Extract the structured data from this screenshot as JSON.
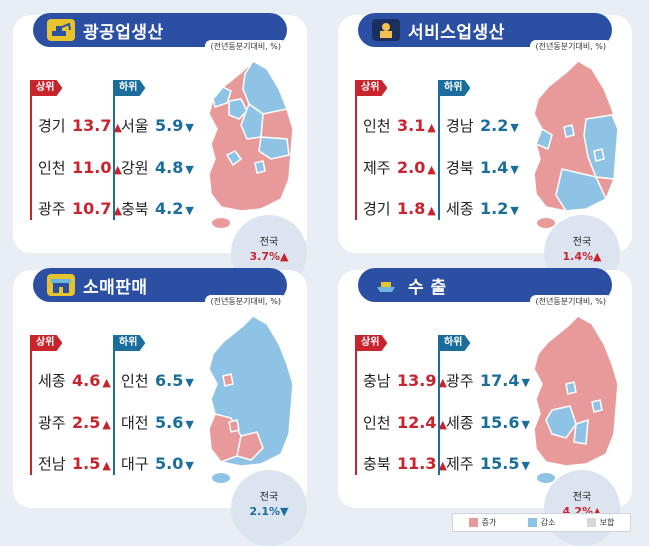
{
  "colors": {
    "increase": "#e89a9a",
    "decrease": "#8fc3e6",
    "mixed": "#d7d7d7",
    "up_text": "#c8242e",
    "down_text": "#1b6d9b",
    "header": "#2b4fa2"
  },
  "panels": [
    {
      "title": "광공업생산",
      "icon": "excavator-icon",
      "unit": "(전년동분기대비, %)",
      "upper_label": "상위",
      "lower_label": "하위",
      "upper": [
        {
          "region": "경기",
          "value": "13.7"
        },
        {
          "region": "인천",
          "value": "11.0"
        },
        {
          "region": "광주",
          "value": "10.7"
        }
      ],
      "lower": [
        {
          "region": "서울",
          "value": "5.9"
        },
        {
          "region": "강원",
          "value": "4.8"
        },
        {
          "region": "충북",
          "value": "4.2"
        }
      ],
      "nation_label": "전국",
      "nation_value": "3.7%",
      "nation_direction": "up"
    },
    {
      "title": "서비스업생산",
      "icon": "worker-icon",
      "unit": "(전년동분기대비, %)",
      "upper_label": "상위",
      "lower_label": "하위",
      "upper": [
        {
          "region": "인천",
          "value": "3.1"
        },
        {
          "region": "제주",
          "value": "2.0"
        },
        {
          "region": "경기",
          "value": "1.8"
        }
      ],
      "lower": [
        {
          "region": "경남",
          "value": "2.2"
        },
        {
          "region": "경북",
          "value": "1.4"
        },
        {
          "region": "세종",
          "value": "1.2"
        }
      ],
      "nation_label": "전국",
      "nation_value": "1.4%",
      "nation_direction": "up"
    },
    {
      "title": "소매판매",
      "icon": "shop-icon",
      "unit": "(전년동분기대비, %)",
      "upper_label": "상위",
      "lower_label": "하위",
      "upper": [
        {
          "region": "세종",
          "value": "4.6"
        },
        {
          "region": "광주",
          "value": "2.5"
        },
        {
          "region": "전남",
          "value": "1.5"
        }
      ],
      "lower": [
        {
          "region": "인천",
          "value": "6.5"
        },
        {
          "region": "대전",
          "value": "5.6"
        },
        {
          "region": "대구",
          "value": "5.0"
        }
      ],
      "nation_label": "전국",
      "nation_value": "2.1%",
      "nation_direction": "down"
    },
    {
      "title": "수 출",
      "icon": "ship-icon",
      "unit": "(전년동분기대비, %)",
      "upper_label": "상위",
      "lower_label": "하위",
      "upper": [
        {
          "region": "충남",
          "value": "13.9"
        },
        {
          "region": "인천",
          "value": "12.4"
        },
        {
          "region": "충북",
          "value": "11.3"
        }
      ],
      "lower": [
        {
          "region": "광주",
          "value": "17.4"
        },
        {
          "region": "세종",
          "value": "15.6"
        },
        {
          "region": "제주",
          "value": "15.5"
        }
      ],
      "nation_label": "전국",
      "nation_value": "4.2%",
      "nation_direction": "up"
    }
  ],
  "legend": {
    "increase": "증가",
    "decrease": "감소",
    "mixed": "보합"
  }
}
